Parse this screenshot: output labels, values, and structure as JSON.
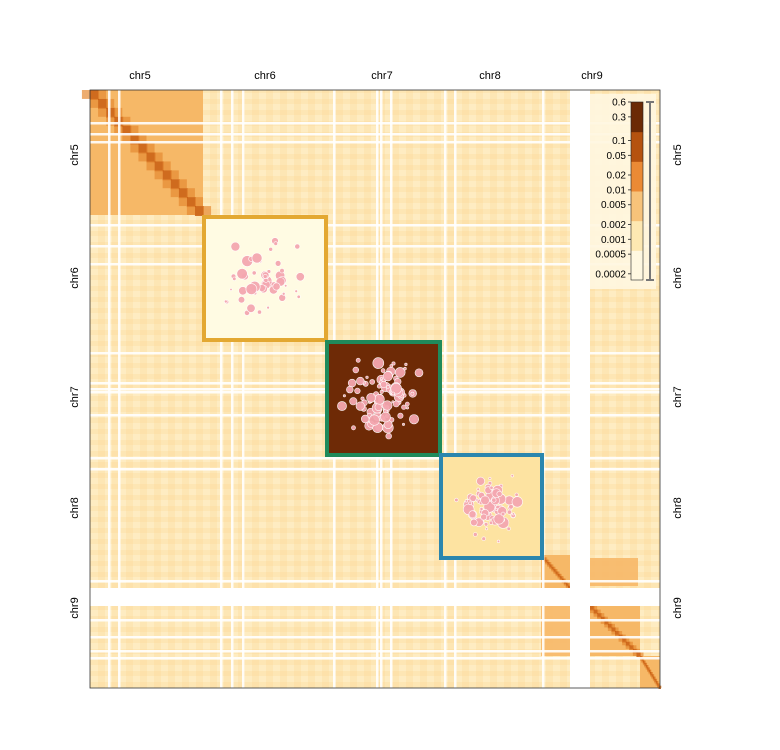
{
  "chart_data": {
    "type": "heatmap",
    "title": "",
    "chromosomes": [
      {
        "name": "chr5",
        "top_label": "chr5",
        "left_label": "chr5",
        "right_label": "chr5"
      },
      {
        "name": "chr6",
        "top_label": "chr6",
        "left_label": "chr6",
        "right_label": "chr6"
      },
      {
        "name": "chr7",
        "top_label": "chr7",
        "left_label": "chr7",
        "right_label": "chr7"
      },
      {
        "name": "chr8",
        "top_label": "chr8",
        "left_label": "chr8",
        "right_label": "chr8"
      },
      {
        "name": "chr9",
        "top_label": "chr9",
        "left_label": "chr9",
        "right_label": "chr9"
      }
    ],
    "colorscale": {
      "scale": "log",
      "range": [
        0.00015,
        0.6
      ],
      "colors": [
        "#fff8e1",
        "#fde8b2",
        "#f7c37a",
        "#eb8a35",
        "#b5520f",
        "#6b2a05"
      ],
      "tick_labels": [
        "0.6",
        "0.3",
        "0.1",
        "0.05",
        "0.02",
        "0.01",
        "0.005",
        "0.002",
        "0.001",
        "0.0005",
        "0.0002"
      ],
      "tick_values": [
        0.6,
        0.3,
        0.1,
        0.05,
        0.02,
        0.01,
        0.005,
        0.002,
        0.001,
        0.0005,
        0.0002
      ]
    },
    "highlight_boxes": [
      {
        "chromosome": "chr6",
        "border_color": "#e3a832",
        "fill_color": "#fffbe3"
      },
      {
        "chromosome": "chr7",
        "border_color": "#1f8a5b",
        "fill_color": "#6e2a06"
      },
      {
        "chromosome": "chr8",
        "border_color": "#2b86ae",
        "fill_color": "#fde3a1"
      }
    ],
    "marker_color": "#f4a7b0",
    "grid": false,
    "legend": "top-right colorbar"
  }
}
